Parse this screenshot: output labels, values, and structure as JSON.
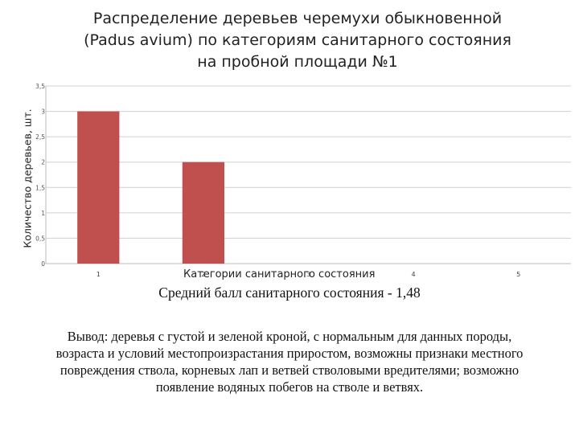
{
  "title_lines": [
    "Распределение деревьев черемухи обыкновенной",
    "(Padus avium) по категориям санитарного состояния",
    "на пробной площади №1"
  ],
  "chart_data": {
    "type": "bar",
    "categories": [
      "1",
      "2",
      "3",
      "4",
      "5"
    ],
    "values": [
      3,
      2,
      0,
      0,
      0
    ],
    "ylabel": "Количество деревьев, шт.",
    "xlabel": "Категории санитарного состояния",
    "ylim": [
      0,
      3.5
    ],
    "yticks": [
      "0",
      "0,5",
      "1",
      "1,5",
      "2",
      "2,5",
      "3",
      "3,5"
    ],
    "grid": true,
    "bar_color": "#c0504d"
  },
  "average_text": "Средний балл санитарного состояния - 1,48",
  "conclusion_lines": [
    "Вывод: деревья с густой и зеленой кроной, с нормальным для данных породы,",
    "возраста и условий местопроизрастания приростом, возможны признаки местного",
    "повреждения ствола, корневых лап и ветвей стволовыми вредителями; возможно",
    "появление водяных побегов на стволе и ветвях."
  ]
}
